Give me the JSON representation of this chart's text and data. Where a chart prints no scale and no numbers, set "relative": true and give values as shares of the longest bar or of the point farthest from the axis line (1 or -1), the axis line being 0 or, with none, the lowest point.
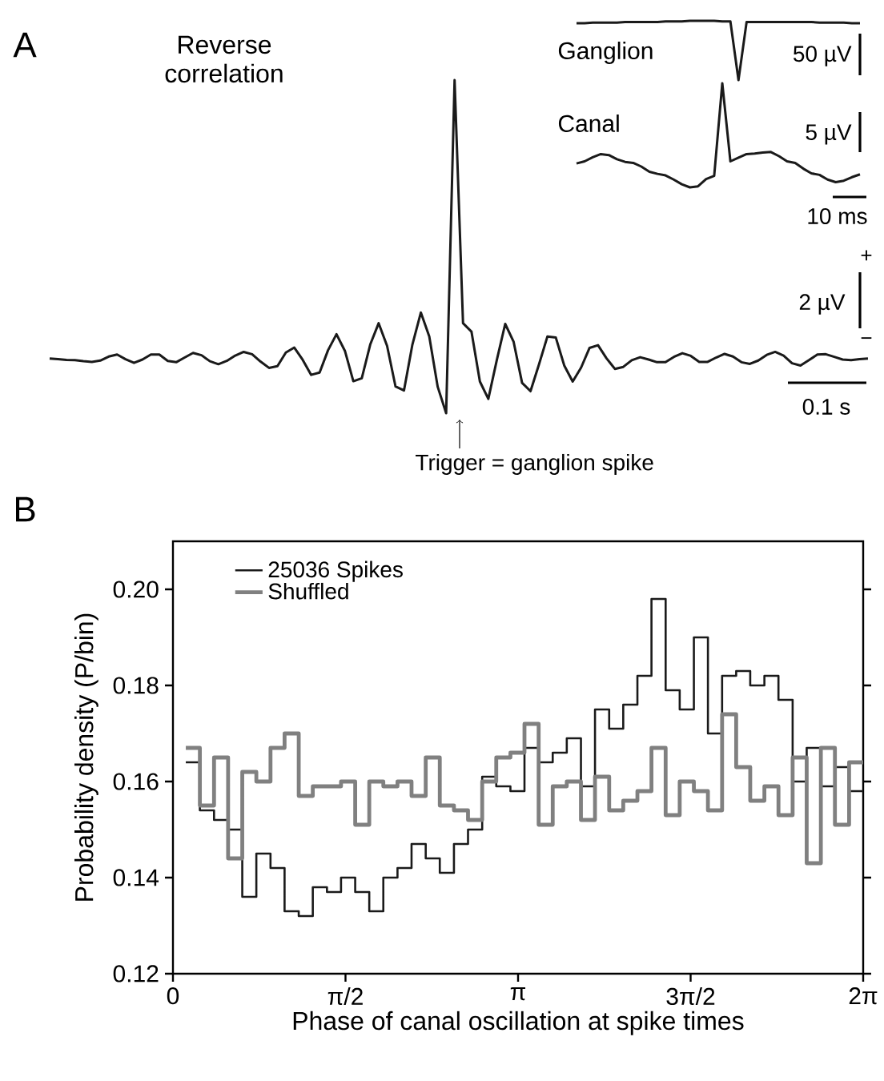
{
  "chart_data": [
    {
      "type": "line",
      "title": "Reverse correlation",
      "relative": true,
      "annotations": [
        "A",
        "2 µV",
        "+",
        "−",
        "0.1 s",
        "Trigger = ganglion spike"
      ],
      "categories": [
        null,
        null,
        null,
        null,
        null,
        null,
        null,
        null,
        null,
        null,
        null,
        null,
        null,
        null,
        null,
        null,
        null,
        null,
        null,
        null,
        null,
        null,
        null,
        null,
        null,
        null,
        null,
        null,
        null,
        null,
        null,
        null,
        null,
        null,
        null,
        null,
        null,
        null,
        null,
        null,
        null,
        null,
        null,
        null,
        null,
        null,
        null,
        null,
        null,
        null,
        null,
        null,
        null,
        null,
        null,
        null,
        null,
        null,
        null,
        null,
        null,
        null,
        null,
        null,
        null,
        null,
        null,
        null,
        null,
        null,
        null,
        null,
        null,
        null,
        null,
        null,
        null,
        null,
        null,
        null,
        null,
        null,
        null,
        null,
        null,
        null,
        null,
        null,
        null,
        null,
        null,
        null,
        null,
        null,
        null,
        null,
        null,
        null
      ],
      "series": [
        {
          "color": "#1a1a1a",
          "values": [
            0.164,
            0.162,
            0.16,
            0.159,
            0.156,
            0.154,
            0.158,
            0.17,
            0.176,
            0.162,
            0.151,
            0.161,
            0.176,
            0.176,
            0.157,
            0.153,
            0.167,
            0.181,
            0.174,
            0.156,
            0.147,
            0.157,
            0.173,
            0.184,
            0.177,
            0.155,
            0.136,
            0.141,
            0.182,
            0.197,
            0.16,
            0.115,
            0.122,
            0.189,
            0.237,
            0.187,
            0.096,
            0.105,
            0.206,
            0.27,
            0.202,
            0.08,
            0.068,
            0.206,
            0.302,
            0.23,
            0.079,
            0,
            1,
            0.27,
            0.245,
            0.095,
            0.043,
            0.159,
            0.268,
            0.214,
            0.091,
            0.066,
            0.146,
            0.23,
            0.227,
            0.143,
            0.095,
            0.137,
            0.196,
            0.204,
            0.165,
            0.133,
            0.139,
            0.159,
            0.168,
            0.161,
            0.153,
            0.153,
            0.169,
            0.18,
            0.172,
            0.154,
            0.154,
            0.167,
            0.178,
            0.17,
            0.153,
            0.148,
            0.158,
            0.175,
            0.184,
            0.173,
            0.15,
            0.143,
            0.159,
            0.176,
            0.177,
            0.169,
            0.161,
            0.159,
            0.162,
            0.164
          ]
        }
      ]
    },
    {
      "type": "line",
      "relative": true,
      "annotations": [
        "50 µV"
      ],
      "categories": [
        null,
        null,
        null,
        null,
        null,
        null,
        null,
        null,
        null,
        null,
        null,
        null,
        null,
        null,
        null,
        null,
        null,
        null,
        null,
        null,
        null,
        null,
        null,
        null,
        null,
        null,
        null,
        null,
        null,
        null,
        null,
        null,
        null,
        null,
        null,
        null
      ],
      "series": [
        {
          "name": "Ganglion",
          "color": "#1a1a1a",
          "values": [
            0.96,
            0.96,
            0.97,
            0.97,
            0.97,
            0.97,
            0.98,
            0.98,
            0.98,
            0.98,
            0.98,
            0.99,
            0.99,
            0.99,
            1,
            1,
            1,
            1,
            0.99,
            0.99,
            0,
            0.98,
            0.98,
            0.98,
            0.98,
            0.98,
            0.98,
            0.98,
            0.98,
            0.98,
            0.97,
            0.97,
            0.97,
            0.97,
            0.96,
            0.96
          ]
        }
      ]
    },
    {
      "type": "line",
      "relative": true,
      "annotations": [
        "5 µV",
        "10 ms"
      ],
      "categories": [
        null,
        null,
        null,
        null,
        null,
        null,
        null,
        null,
        null,
        null,
        null,
        null,
        null,
        null,
        null,
        null,
        null,
        null,
        null,
        null,
        null,
        null,
        null,
        null,
        null,
        null,
        null,
        null,
        null,
        null,
        null,
        null,
        null,
        null,
        null,
        null
      ],
      "series": [
        {
          "name": "Canal",
          "color": "#1a1a1a",
          "values": [
            0.23,
            0.25,
            0.29,
            0.32,
            0.31,
            0.27,
            0.245,
            0.235,
            0.2,
            0.15,
            0.13,
            0.115,
            0.075,
            0.03,
            0,
            0.01,
            0.08,
            0.11,
            1,
            0.25,
            0.285,
            0.32,
            0.325,
            0.335,
            0.34,
            0.3,
            0.25,
            0.235,
            0.18,
            0.135,
            0.12,
            0.075,
            0.05,
            0.064,
            0.098,
            0.125
          ]
        }
      ]
    },
    {
      "type": "histogram",
      "xlabel": "Phase of canal oscillation at spike times",
      "ylabel": "Probability density (P/bin)",
      "annotations": [
        "B"
      ],
      "legend": "top left",
      "xlim": [
        0,
        6.2832
      ],
      "ylim": [
        0.12,
        0.21
      ],
      "xticks": [
        0,
        {
          "value": 1.5708,
          "label": "π/2"
        },
        {
          "value": 3.1416,
          "label": "π"
        },
        {
          "value": 4.7124,
          "label": "3π/2"
        },
        {
          "value": 6.2832,
          "label": "2π"
        }
      ],
      "yticks": [
        0.12,
        0.14,
        0.16,
        0.18,
        {
          "value": 0.2,
          "label": "0.20"
        }
      ],
      "bins": [
        0.117,
        0.245,
        0.374,
        0.502,
        0.631,
        0.759,
        0.888,
        1.016,
        1.145,
        1.273,
        1.402,
        1.53,
        1.659,
        1.787,
        1.915,
        2.044,
        2.172,
        2.301,
        2.429,
        2.558,
        2.686,
        2.815,
        2.943,
        3.072,
        3.2,
        3.329,
        3.457,
        3.585,
        3.714,
        3.842,
        3.971,
        4.099,
        4.228,
        4.356,
        4.485,
        4.613,
        4.742,
        4.87,
        4.999,
        5.127,
        5.255,
        5.384,
        5.512,
        5.641,
        5.769,
        5.898,
        6.026,
        6.155,
        6.283
      ],
      "series": [
        {
          "name": "25036 Spikes",
          "color": "#1a1a1a",
          "values": [
            0.164,
            0.154,
            0.152,
            0.15,
            0.136,
            0.145,
            0.142,
            0.133,
            0.132,
            0.138,
            0.137,
            0.14,
            0.137,
            0.133,
            0.14,
            0.142,
            0.147,
            0.144,
            0.141,
            0.147,
            0.15,
            0.161,
            0.159,
            0.158,
            0.167,
            0.164,
            0.166,
            0.169,
            0.159,
            0.175,
            0.171,
            0.176,
            0.182,
            0.198,
            0.179,
            0.175,
            0.19,
            0.17,
            0.182,
            0.183,
            0.18,
            0.182,
            0.177,
            0.16,
            0.167,
            0.159,
            0.163,
            0.158
          ]
        },
        {
          "name": "Shuffled",
          "color": "#808080",
          "values": [
            0.167,
            0.155,
            0.165,
            0.144,
            0.162,
            0.16,
            0.167,
            0.17,
            0.157,
            0.159,
            0.159,
            0.16,
            0.151,
            0.16,
            0.159,
            0.16,
            0.157,
            0.165,
            0.155,
            0.154,
            0.152,
            0.16,
            0.165,
            0.166,
            0.172,
            0.151,
            0.159,
            0.16,
            0.152,
            0.161,
            0.154,
            0.156,
            0.158,
            0.167,
            0.153,
            0.16,
            0.158,
            0.154,
            0.174,
            0.163,
            0.156,
            0.159,
            0.153,
            0.165,
            0.143,
            0.167,
            0.151,
            0.164
          ]
        }
      ]
    }
  ]
}
